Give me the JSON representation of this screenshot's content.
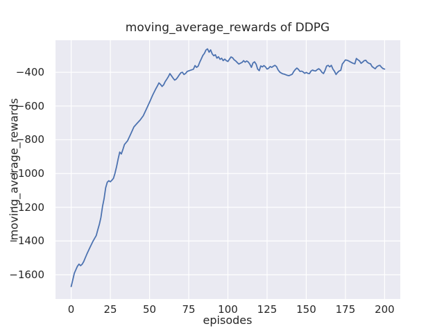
{
  "figure": {
    "background_color": "#ffffff"
  },
  "chart_data": {
    "type": "line",
    "title": "moving_average_rewards of DDPG",
    "xlabel": "episodes",
    "ylabel": "moving_average_rewards",
    "xlim": [
      -10,
      210
    ],
    "ylim": [
      -1744,
      -210
    ],
    "x_ticks": [
      0,
      25,
      50,
      75,
      100,
      125,
      150,
      175,
      200
    ],
    "x_tick_labels": [
      "0",
      "25",
      "50",
      "75",
      "100",
      "125",
      "150",
      "175",
      "200"
    ],
    "y_ticks": [
      -400,
      -600,
      -800,
      -1000,
      -1200,
      -1400,
      -1600
    ],
    "y_tick_labels": [
      "−400",
      "−600",
      "−800",
      "−1000",
      "−1200",
      "−1400",
      "−1600"
    ],
    "grid": true,
    "legend_position": "none",
    "style": {
      "axes_background": "#eaeaf2",
      "grid_color": "#ffffff",
      "line_color": "#4c72b0",
      "text_color": "#262626",
      "line_width": 1.8
    },
    "series": [
      {
        "name": "moving_average_rewards",
        "points": [
          [
            0,
            -1670
          ],
          [
            1,
            -1633
          ],
          [
            2,
            -1592
          ],
          [
            3,
            -1570
          ],
          [
            4,
            -1550
          ],
          [
            5,
            -1537
          ],
          [
            6,
            -1546
          ],
          [
            7,
            -1538
          ],
          [
            8,
            -1522
          ],
          [
            9,
            -1500
          ],
          [
            10,
            -1478
          ],
          [
            12,
            -1438
          ],
          [
            14,
            -1400
          ],
          [
            16,
            -1368
          ],
          [
            17,
            -1333
          ],
          [
            18,
            -1300
          ],
          [
            19,
            -1260
          ],
          [
            20,
            -1195
          ],
          [
            21,
            -1150
          ],
          [
            22,
            -1085
          ],
          [
            23,
            -1052
          ],
          [
            24,
            -1043
          ],
          [
            25,
            -1049
          ],
          [
            26,
            -1040
          ],
          [
            27,
            -1028
          ],
          [
            28,
            -998
          ],
          [
            29,
            -958
          ],
          [
            30,
            -912
          ],
          [
            31,
            -873
          ],
          [
            32,
            -884
          ],
          [
            33,
            -858
          ],
          [
            34,
            -828
          ],
          [
            36,
            -806
          ],
          [
            38,
            -766
          ],
          [
            40,
            -724
          ],
          [
            42,
            -703
          ],
          [
            44,
            -683
          ],
          [
            46,
            -658
          ],
          [
            48,
            -618
          ],
          [
            50,
            -578
          ],
          [
            52,
            -535
          ],
          [
            54,
            -498
          ],
          [
            55,
            -482
          ],
          [
            56,
            -463
          ],
          [
            57,
            -472
          ],
          [
            58,
            -484
          ],
          [
            59,
            -474
          ],
          [
            60,
            -455
          ],
          [
            61,
            -441
          ],
          [
            62,
            -426
          ],
          [
            63,
            -408
          ],
          [
            64,
            -421
          ],
          [
            65,
            -434
          ],
          [
            66,
            -446
          ],
          [
            67,
            -441
          ],
          [
            68,
            -429
          ],
          [
            69,
            -415
          ],
          [
            70,
            -403
          ],
          [
            71,
            -400
          ],
          [
            72,
            -413
          ],
          [
            73,
            -407
          ],
          [
            74,
            -395
          ],
          [
            76,
            -388
          ],
          [
            78,
            -382
          ],
          [
            79,
            -360
          ],
          [
            80,
            -371
          ],
          [
            81,
            -364
          ],
          [
            82,
            -341
          ],
          [
            83,
            -321
          ],
          [
            84,
            -300
          ],
          [
            85,
            -288
          ],
          [
            86,
            -268
          ],
          [
            87,
            -261
          ],
          [
            88,
            -281
          ],
          [
            89,
            -267
          ],
          [
            90,
            -291
          ],
          [
            91,
            -302
          ],
          [
            92,
            -296
          ],
          [
            93,
            -316
          ],
          [
            94,
            -308
          ],
          [
            95,
            -323
          ],
          [
            96,
            -317
          ],
          [
            97,
            -331
          ],
          [
            98,
            -322
          ],
          [
            99,
            -331
          ],
          [
            100,
            -336
          ],
          [
            101,
            -322
          ],
          [
            102,
            -309
          ],
          [
            103,
            -314
          ],
          [
            104,
            -326
          ],
          [
            105,
            -333
          ],
          [
            106,
            -343
          ],
          [
            107,
            -351
          ],
          [
            108,
            -346
          ],
          [
            109,
            -342
          ],
          [
            110,
            -331
          ],
          [
            111,
            -340
          ],
          [
            112,
            -333
          ],
          [
            113,
            -339
          ],
          [
            114,
            -352
          ],
          [
            115,
            -371
          ],
          [
            116,
            -345
          ],
          [
            117,
            -338
          ],
          [
            118,
            -352
          ],
          [
            119,
            -381
          ],
          [
            120,
            -390
          ],
          [
            121,
            -362
          ],
          [
            122,
            -368
          ],
          [
            123,
            -360
          ],
          [
            124,
            -368
          ],
          [
            125,
            -381
          ],
          [
            126,
            -376
          ],
          [
            127,
            -366
          ],
          [
            128,
            -371
          ],
          [
            129,
            -364
          ],
          [
            130,
            -359
          ],
          [
            131,
            -366
          ],
          [
            132,
            -385
          ],
          [
            133,
            -398
          ],
          [
            134,
            -404
          ],
          [
            135,
            -409
          ],
          [
            136,
            -411
          ],
          [
            137,
            -415
          ],
          [
            138,
            -418
          ],
          [
            139,
            -420
          ],
          [
            140,
            -416
          ],
          [
            141,
            -412
          ],
          [
            142,
            -396
          ],
          [
            143,
            -384
          ],
          [
            144,
            -375
          ],
          [
            145,
            -383
          ],
          [
            146,
            -395
          ],
          [
            147,
            -393
          ],
          [
            148,
            -398
          ],
          [
            149,
            -406
          ],
          [
            150,
            -401
          ],
          [
            151,
            -406
          ],
          [
            152,
            -408
          ],
          [
            153,
            -393
          ],
          [
            154,
            -387
          ],
          [
            155,
            -391
          ],
          [
            156,
            -392
          ],
          [
            157,
            -384
          ],
          [
            158,
            -379
          ],
          [
            159,
            -387
          ],
          [
            160,
            -400
          ],
          [
            161,
            -408
          ],
          [
            162,
            -388
          ],
          [
            163,
            -363
          ],
          [
            164,
            -359
          ],
          [
            165,
            -368
          ],
          [
            166,
            -359
          ],
          [
            167,
            -381
          ],
          [
            168,
            -394
          ],
          [
            169,
            -413
          ],
          [
            170,
            -401
          ],
          [
            171,
            -392
          ],
          [
            172,
            -388
          ],
          [
            173,
            -351
          ],
          [
            174,
            -339
          ],
          [
            175,
            -327
          ],
          [
            176,
            -329
          ],
          [
            177,
            -332
          ],
          [
            178,
            -338
          ],
          [
            179,
            -343
          ],
          [
            180,
            -347
          ],
          [
            181,
            -350
          ],
          [
            182,
            -318
          ],
          [
            183,
            -326
          ],
          [
            184,
            -333
          ],
          [
            185,
            -347
          ],
          [
            186,
            -339
          ],
          [
            187,
            -331
          ],
          [
            188,
            -329
          ],
          [
            189,
            -341
          ],
          [
            190,
            -347
          ],
          [
            191,
            -350
          ],
          [
            192,
            -366
          ],
          [
            193,
            -373
          ],
          [
            194,
            -379
          ],
          [
            195,
            -367
          ],
          [
            196,
            -361
          ],
          [
            197,
            -359
          ],
          [
            198,
            -370
          ],
          [
            199,
            -378
          ],
          [
            200,
            -381
          ]
        ]
      }
    ]
  }
}
